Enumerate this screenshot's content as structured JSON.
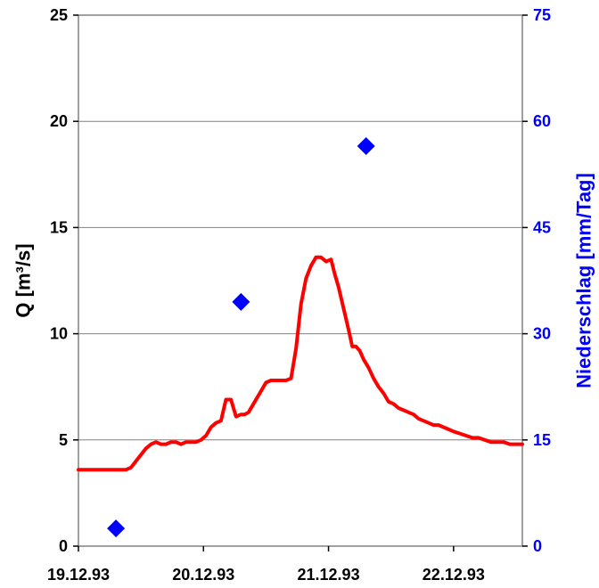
{
  "chart_data": {
    "type": "line",
    "x_tick_labels": [
      "19.12.93",
      "20.12.93",
      "21.12.93",
      "22.12.93"
    ],
    "xlim": [
      0,
      3.55
    ],
    "ylabel": "Q [m³/s]",
    "ylim": [
      0,
      25
    ],
    "y_ticks": [
      "0",
      "5",
      "10",
      "15",
      "20",
      "25"
    ],
    "y2label": "Niederschlag [mm/Tag]",
    "y2lim": [
      0,
      75
    ],
    "y2_ticks": [
      "0",
      "15",
      "30",
      "45",
      "60",
      "75"
    ],
    "grid": true,
    "series": [
      {
        "kind": "line",
        "axis": "left",
        "color": "#FF0000",
        "x": [
          0,
          0.38,
          0.42,
          0.46,
          0.5,
          0.54,
          0.58,
          0.62,
          0.66,
          0.7,
          0.74,
          0.78,
          0.82,
          0.86,
          0.9,
          0.94,
          0.98,
          1.02,
          1.06,
          1.1,
          1.14,
          1.18,
          1.22,
          1.26,
          1.3,
          1.33,
          1.36,
          1.39,
          1.42,
          1.46,
          1.5,
          1.54,
          1.58,
          1.62,
          1.66,
          1.7,
          1.74,
          1.78,
          1.82,
          1.86,
          1.9,
          1.94,
          1.98,
          2.02,
          2.05,
          2.08,
          2.12,
          2.16,
          2.19,
          2.22,
          2.25,
          2.28,
          2.32,
          2.36,
          2.4,
          2.44,
          2.48,
          2.52,
          2.56,
          2.6,
          2.64,
          2.68,
          2.72,
          2.76,
          2.8,
          2.84,
          2.88,
          2.92,
          2.96,
          3.0,
          3.05,
          3.1,
          3.15,
          3.2,
          3.25,
          3.3,
          3.35,
          3.4,
          3.45,
          3.5,
          3.55
        ],
        "y": [
          3.6,
          3.6,
          3.7,
          4.0,
          4.3,
          4.6,
          4.8,
          4.9,
          4.8,
          4.8,
          4.9,
          4.9,
          4.8,
          4.9,
          4.9,
          4.9,
          5.0,
          5.2,
          5.6,
          5.8,
          5.9,
          6.9,
          6.9,
          6.1,
          6.2,
          6.2,
          6.3,
          6.6,
          6.9,
          7.3,
          7.7,
          7.8,
          7.8,
          7.8,
          7.8,
          7.9,
          9.3,
          11.4,
          12.6,
          13.2,
          13.6,
          13.6,
          13.4,
          13.5,
          12.8,
          12.2,
          11.2,
          10.2,
          9.4,
          9.4,
          9.2,
          8.8,
          8.4,
          7.9,
          7.5,
          7.2,
          6.8,
          6.7,
          6.5,
          6.4,
          6.3,
          6.2,
          6.0,
          5.9,
          5.8,
          5.7,
          5.7,
          5.6,
          5.5,
          5.4,
          5.3,
          5.2,
          5.1,
          5.1,
          5.0,
          4.9,
          4.9,
          4.9,
          4.8,
          4.8,
          4.8
        ]
      },
      {
        "kind": "scatter",
        "axis": "right",
        "color": "#0000FF",
        "marker": "diamond",
        "x": [
          0.3,
          1.3,
          2.3
        ],
        "y": [
          2.5,
          34.5,
          56.5
        ]
      }
    ]
  }
}
